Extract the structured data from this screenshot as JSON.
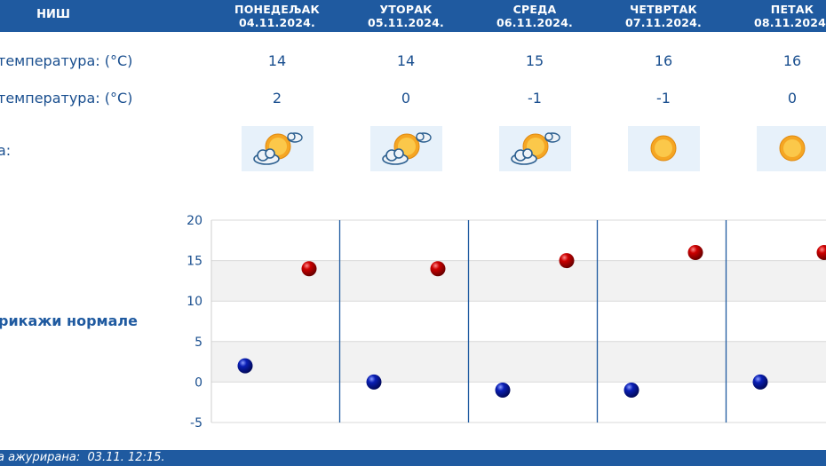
{
  "header": {
    "city": "НИШ",
    "days": [
      {
        "name": "ПОНЕДЕЉАК",
        "date": "04.11.2024."
      },
      {
        "name": "УТОРАК",
        "date": "05.11.2024."
      },
      {
        "name": "СРЕДА",
        "date": "06.11.2024."
      },
      {
        "name": "ЧЕТВРТАК",
        "date": "07.11.2024."
      },
      {
        "name": "ПЕТАК",
        "date": "08.11.2024."
      }
    ]
  },
  "rows": {
    "max_label": "температура: (°C)",
    "min_label": "температура: (°C)",
    "icon_label": "а:",
    "max_values": [
      "14",
      "14",
      "15",
      "16",
      "16"
    ],
    "min_values": [
      "2",
      "0",
      "-1",
      "-1",
      "0"
    ],
    "icons": [
      "partly-sunny-icon",
      "partly-sunny-icon",
      "partly-sunny-icon",
      "sunny-icon",
      "sunny-icon"
    ]
  },
  "norm_link": "рикажи нормале",
  "footer": {
    "updated_label": "а ажурирана:",
    "updated_value": "03.11. 12:15."
  },
  "colors": {
    "header_bg": "#1f5aa0",
    "text": "#1a4f8f",
    "max_marker": "#cc0000",
    "min_marker": "#0a1fb5",
    "band": "#f2f2f2"
  },
  "chart_data": {
    "type": "scatter",
    "ylim": [
      -5,
      20
    ],
    "yticks": [
      20,
      15,
      10,
      5,
      0,
      -5
    ],
    "grid": true,
    "series": [
      {
        "values": [
          14,
          14,
          15,
          16,
          16
        ]
      },
      {
        "values": [
          2,
          0,
          -1,
          -1,
          0
        ]
      }
    ]
  }
}
